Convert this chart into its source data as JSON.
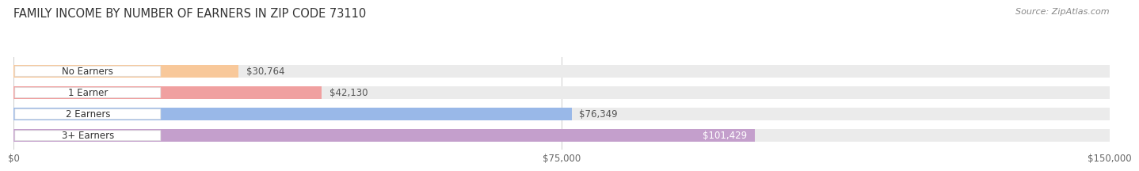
{
  "title": "FAMILY INCOME BY NUMBER OF EARNERS IN ZIP CODE 73110",
  "source": "Source: ZipAtlas.com",
  "categories": [
    "No Earners",
    "1 Earner",
    "2 Earners",
    "3+ Earners"
  ],
  "values": [
    30764,
    42130,
    76349,
    101429
  ],
  "value_labels": [
    "$30,764",
    "$42,130",
    "$76,349",
    "$101,429"
  ],
  "bar_colors": [
    "#f8c89a",
    "#f0a0a0",
    "#99b8e8",
    "#c49fcc"
  ],
  "label_colors": [
    "#555555",
    "#555555",
    "#555555",
    "#ffffff"
  ],
  "bar_bg_color": "#ebebeb",
  "background_color": "#ffffff",
  "xlim": [
    0,
    150000
  ],
  "xticks": [
    0,
    75000,
    150000
  ],
  "xtick_labels": [
    "$0",
    "$75,000",
    "$150,000"
  ],
  "title_fontsize": 10.5,
  "bar_label_fontsize": 8.5,
  "category_fontsize": 8.5,
  "source_fontsize": 8.0
}
